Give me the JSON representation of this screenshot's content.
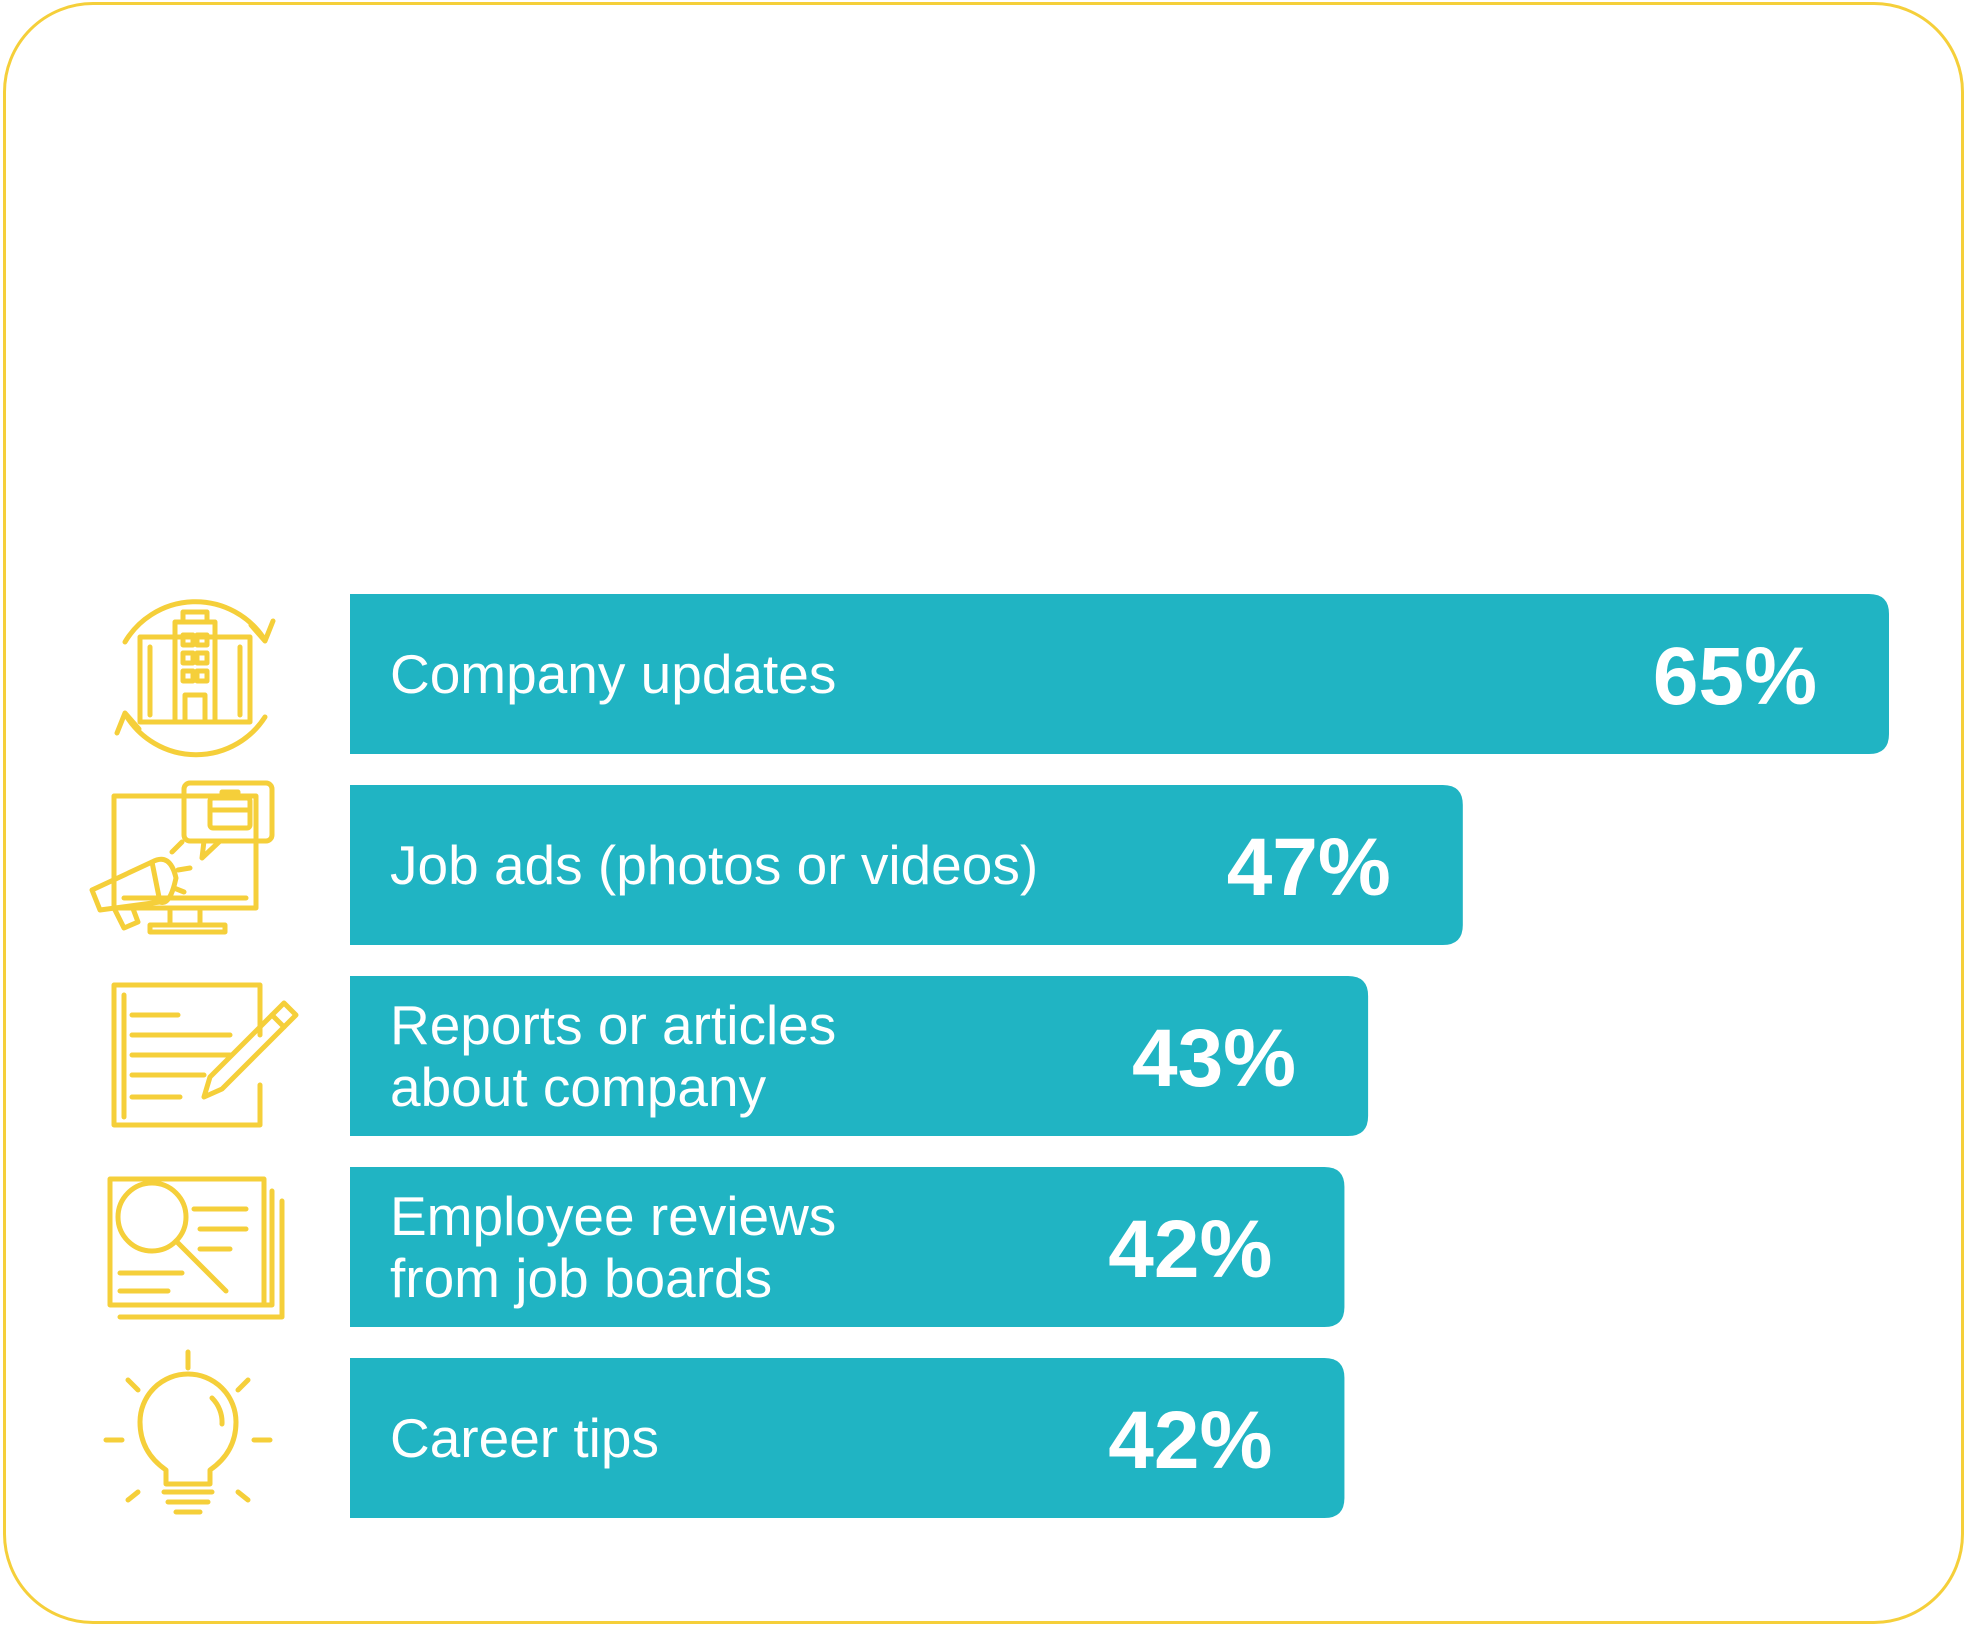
{
  "colors": {
    "bar": "#20b4c3",
    "accent": "#f5cf3a",
    "text": "#ffffff"
  },
  "chart_data": {
    "type": "bar",
    "orientation": "horizontal",
    "categories": [
      [
        "Company updates"
      ],
      [
        "Job ads (photos or videos)"
      ],
      [
        "Reports or articles",
        "about company"
      ],
      [
        "Employee reviews",
        "from job boards"
      ],
      [
        "Career tips"
      ]
    ],
    "values": [
      65,
      47,
      43,
      42,
      42
    ],
    "value_labels": [
      "65%",
      "47%",
      "43%",
      "42%",
      "42%"
    ],
    "unit": "%",
    "icons": [
      "building-refresh-icon",
      "monitor-megaphone-icon",
      "document-pencil-icon",
      "magnifier-document-icon",
      "lightbulb-icon"
    ],
    "xlim": [
      0,
      65
    ],
    "grid": false,
    "legend": "none"
  }
}
